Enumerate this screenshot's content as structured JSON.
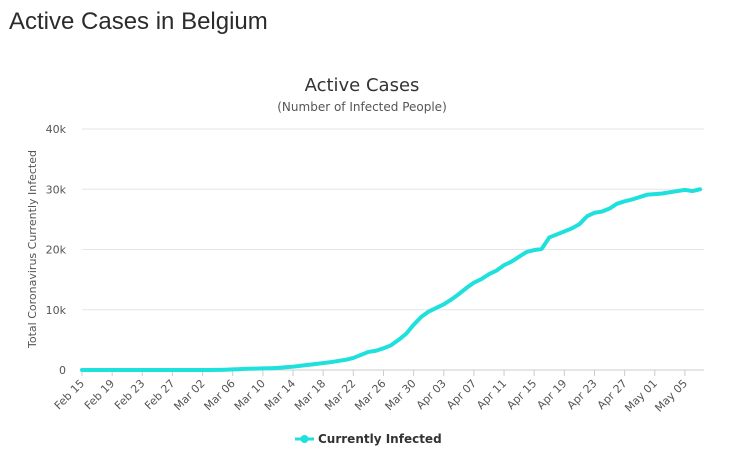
{
  "page": {
    "heading": "Active Cases in Belgium"
  },
  "colors": {
    "series": "#1ee0dc",
    "grid": "#e6e6e6",
    "axis": "#cccccc"
  },
  "chart_data": {
    "type": "line",
    "title": "Active Cases",
    "subtitle": "(Number of Infected People)",
    "xlabel": "",
    "ylabel": "Total Coronavirus Currently Infected",
    "ylim": [
      0,
      40000
    ],
    "yticks": [
      0,
      10000,
      20000,
      30000,
      40000
    ],
    "ytick_labels": [
      "0",
      "10k",
      "20k",
      "30k",
      "40k"
    ],
    "grid": true,
    "legend_position": "bottom-center",
    "x_tick_labels": [
      "Feb 15",
      "Feb 19",
      "Feb 23",
      "Feb 27",
      "Mar 02",
      "Mar 06",
      "Mar 10",
      "Mar 14",
      "Mar 18",
      "Mar 22",
      "Mar 26",
      "Mar 30",
      "Apr 03",
      "Apr 07",
      "Apr 11",
      "Apr 15",
      "Apr 19",
      "Apr 23",
      "Apr 27",
      "May 01",
      "May 05"
    ],
    "x": [
      "Feb 15",
      "Feb 16",
      "Feb 17",
      "Feb 18",
      "Feb 19",
      "Feb 20",
      "Feb 21",
      "Feb 22",
      "Feb 23",
      "Feb 24",
      "Feb 25",
      "Feb 26",
      "Feb 27",
      "Feb 28",
      "Feb 29",
      "Mar 01",
      "Mar 02",
      "Mar 03",
      "Mar 04",
      "Mar 05",
      "Mar 06",
      "Mar 07",
      "Mar 08",
      "Mar 09",
      "Mar 10",
      "Mar 11",
      "Mar 12",
      "Mar 13",
      "Mar 14",
      "Mar 15",
      "Mar 16",
      "Mar 17",
      "Mar 18",
      "Mar 19",
      "Mar 20",
      "Mar 21",
      "Mar 22",
      "Mar 23",
      "Mar 24",
      "Mar 25",
      "Mar 26",
      "Mar 27",
      "Mar 28",
      "Mar 29",
      "Mar 30",
      "Mar 31",
      "Apr 01",
      "Apr 02",
      "Apr 03",
      "Apr 04",
      "Apr 05",
      "Apr 06",
      "Apr 07",
      "Apr 08",
      "Apr 09",
      "Apr 10",
      "Apr 11",
      "Apr 12",
      "Apr 13",
      "Apr 14",
      "Apr 15",
      "Apr 16",
      "Apr 17",
      "Apr 18",
      "Apr 19",
      "Apr 20",
      "Apr 21",
      "Apr 22",
      "Apr 23",
      "Apr 24",
      "Apr 25",
      "Apr 26",
      "Apr 27",
      "Apr 28",
      "Apr 29",
      "Apr 30",
      "May 01",
      "May 02",
      "May 03",
      "May 04",
      "May 05",
      "May 06",
      "May 07"
    ],
    "series": [
      {
        "name": "Currently Infected",
        "values": [
          1,
          1,
          1,
          1,
          1,
          1,
          1,
          1,
          1,
          1,
          1,
          1,
          1,
          1,
          1,
          1,
          2,
          5,
          20,
          50,
          100,
          150,
          200,
          230,
          260,
          300,
          350,
          450,
          550,
          700,
          850,
          1000,
          1150,
          1300,
          1500,
          1700,
          2000,
          2500,
          3000,
          3200,
          3600,
          4100,
          5000,
          6000,
          7500,
          8800,
          9700,
          10300,
          10900,
          11700,
          12600,
          13600,
          14500,
          15100,
          15900,
          16500,
          17400,
          18000,
          18800,
          19600,
          19900,
          20100,
          22000,
          22500,
          23000,
          23500,
          24200,
          25500,
          26100,
          26300,
          26800,
          27600,
          28000,
          28300,
          28700,
          29100,
          29200,
          29300,
          29500,
          29700,
          29900,
          29700,
          30000
        ]
      }
    ]
  }
}
